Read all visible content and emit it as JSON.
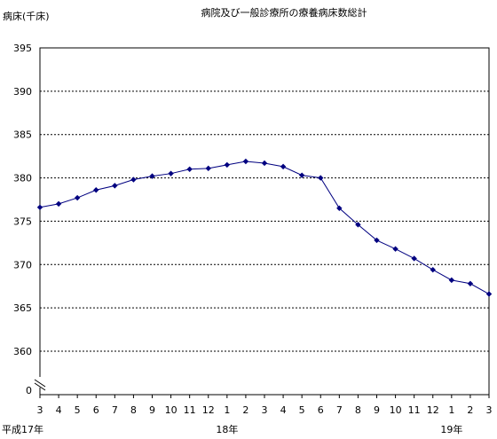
{
  "chart_data": {
    "type": "line",
    "title": "病院及び一般診療所の療養病床数総計",
    "ylabel": "病床(千床)",
    "xlabel": "",
    "ylim": [
      360,
      395
    ],
    "yticks": [
      "395",
      "390",
      "385",
      "380",
      "375",
      "370",
      "365",
      "360",
      "0"
    ],
    "y_axis_break": true,
    "grid": true,
    "categories": [
      "3",
      "4",
      "5",
      "6",
      "7",
      "8",
      "9",
      "10",
      "11",
      "12",
      "1",
      "2",
      "3",
      "4",
      "5",
      "6",
      "7",
      "8",
      "9",
      "10",
      "11",
      "12",
      "1",
      "2",
      "3"
    ],
    "year_labels": [
      {
        "text": "平成17年",
        "index": 0
      },
      {
        "text": "18年",
        "index": 10
      },
      {
        "text": "19年",
        "index": 22
      }
    ],
    "series": [
      {
        "color": "#000080",
        "values": [
          376.6,
          377.0,
          377.7,
          378.6,
          379.1,
          379.8,
          380.2,
          380.5,
          381.0,
          381.1,
          381.5,
          381.9,
          381.7,
          381.3,
          380.3,
          380.0,
          376.5,
          374.6,
          372.8,
          371.8,
          370.7,
          369.4,
          368.2,
          367.8,
          366.6
        ]
      }
    ]
  }
}
